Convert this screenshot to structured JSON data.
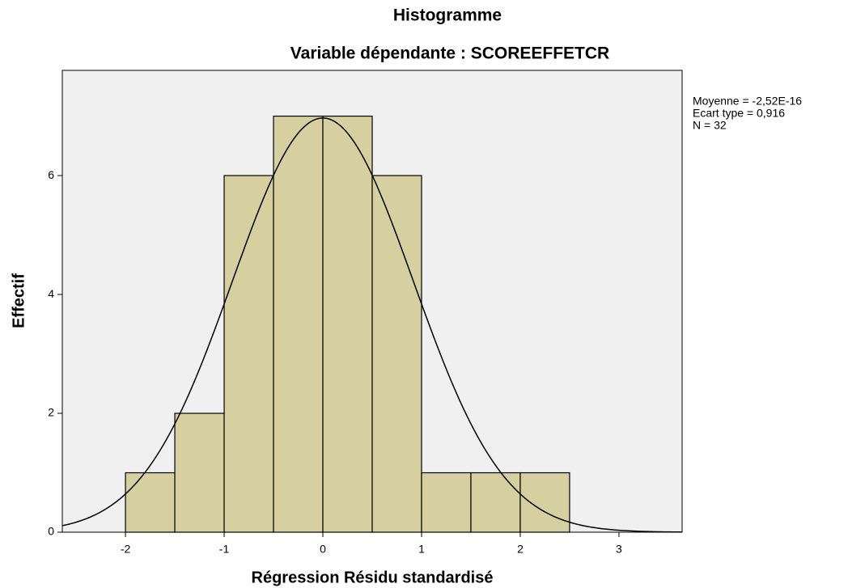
{
  "chart_data": {
    "type": "histogram",
    "title": "Histogramme",
    "subtitle": "Variable dépendante : SCOREEFFETCR",
    "x_label": "Régression Résidu standardisé",
    "y_label": "Effectif",
    "bins": [
      -2,
      -1.5,
      -1,
      -0.5,
      0,
      0.5,
      1,
      1.5,
      2,
      2.5
    ],
    "counts": [
      1,
      2,
      6,
      7,
      7,
      6,
      1,
      1,
      1
    ],
    "color": "#d6d0a0",
    "xlim": [
      -2.64,
      3.64
    ],
    "xticks": [
      -2,
      -1,
      0,
      1,
      2,
      3
    ],
    "ylim": [
      0,
      7.77
    ],
    "yticks": [
      0,
      2,
      4,
      6
    ],
    "stats": [
      {
        "value": -2.52e-16,
        "label": "Moyenne = -2,52E-16"
      },
      {
        "value": 0.916,
        "label": "Ecart type = 0,916"
      },
      {
        "value": 32,
        "label": "N = 32"
      }
    ],
    "normal_curve": true
  }
}
